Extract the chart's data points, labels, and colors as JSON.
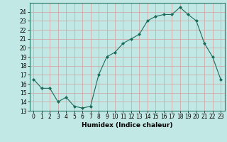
{
  "x": [
    0,
    1,
    2,
    3,
    4,
    5,
    6,
    7,
    8,
    9,
    10,
    11,
    12,
    13,
    14,
    15,
    16,
    17,
    18,
    19,
    20,
    21,
    22,
    23
  ],
  "y": [
    16.5,
    15.5,
    15.5,
    14.0,
    14.5,
    13.5,
    13.3,
    13.5,
    17.0,
    19.0,
    19.5,
    20.5,
    21.0,
    21.5,
    23.0,
    23.5,
    23.7,
    23.7,
    24.5,
    23.7,
    23.0,
    20.5,
    19.0,
    16.5
  ],
  "line_color": "#1a6b5a",
  "marker_color": "#1a6b5a",
  "bg_color": "#c2e8e5",
  "grid_color_major": "#d4a0a0",
  "grid_color_minor": "#d4a0a0",
  "xlabel": "Humidex (Indice chaleur)",
  "xlim": [
    -0.5,
    23.5
  ],
  "ylim": [
    13,
    25
  ],
  "yticks": [
    13,
    14,
    15,
    16,
    17,
    18,
    19,
    20,
    21,
    22,
    23,
    24
  ],
  "xticks": [
    0,
    1,
    2,
    3,
    4,
    5,
    6,
    7,
    8,
    9,
    10,
    11,
    12,
    13,
    14,
    15,
    16,
    17,
    18,
    19,
    20,
    21,
    22,
    23
  ],
  "xtick_labels": [
    "0",
    "1",
    "2",
    "3",
    "4",
    "5",
    "6",
    "7",
    "8",
    "9",
    "10",
    "11",
    "12",
    "13",
    "14",
    "15",
    "16",
    "17",
    "18",
    "19",
    "20",
    "21",
    "22",
    "23"
  ],
  "axis_fontsize": 6.5,
  "tick_fontsize": 5.5,
  "xlabel_fontsize": 6.5
}
